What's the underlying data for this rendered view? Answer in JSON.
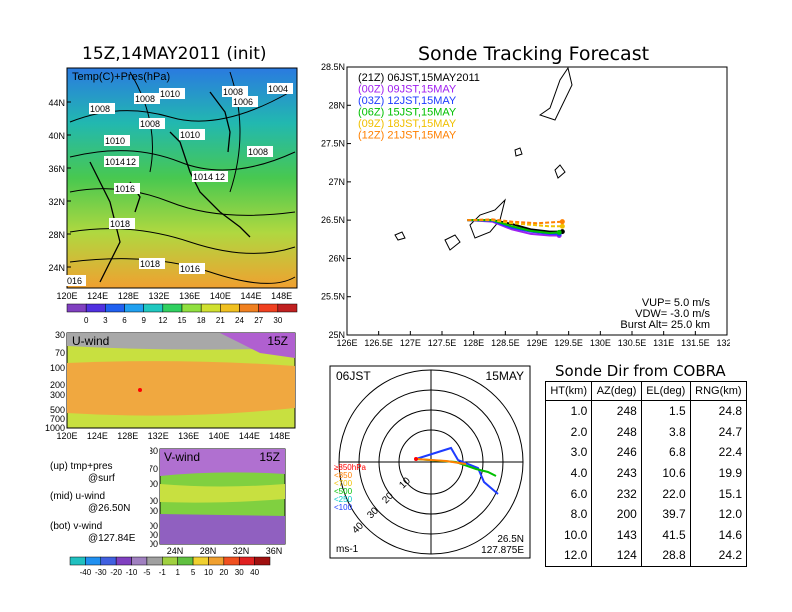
{
  "left_title": "15Z,14MAY2011 (init)",
  "right_title": "Sonde Tracking Forecast",
  "map_panel": {
    "label": "Temp(C)+Pres(hPa)",
    "lat_ticks": [
      "44N",
      "40N",
      "36N",
      "32N",
      "28N",
      "24N"
    ],
    "lon_ticks": [
      "120E",
      "124E",
      "128E",
      "132E",
      "136E",
      "140E",
      "144E",
      "148E"
    ],
    "pressure_labels": [
      "1008",
      "1008",
      "1010",
      "1008",
      "1004",
      "1008",
      "1006",
      "1010",
      "1010",
      "1008",
      "1014",
      "12",
      "1016",
      "1014",
      "12",
      "1018",
      "1018",
      "1016",
      "016"
    ],
    "colorbar_ticks": [
      "0",
      "3",
      "6",
      "9",
      "12",
      "15",
      "18",
      "21",
      "24",
      "27",
      "30"
    ]
  },
  "uwind_panel": {
    "label": "U-wind",
    "time": "15Z",
    "p_ticks": [
      "30",
      "70",
      "100",
      "200",
      "300",
      "500",
      "700",
      "1000"
    ],
    "lon_ticks": [
      "120E",
      "124E",
      "128E",
      "132E",
      "136E",
      "140E",
      "144E",
      "148E"
    ]
  },
  "vwind_panel": {
    "label": "V-wind",
    "time": "15Z",
    "p_ticks": [
      "30",
      "70",
      "100",
      "200",
      "300",
      "500",
      "700",
      "1000"
    ],
    "lat_ticks": [
      "24N",
      "28N",
      "32N",
      "36N"
    ],
    "colorbar_ticks": [
      "-40",
      "-30",
      "-20",
      "-10",
      "-5",
      "-1",
      "1",
      "5",
      "10",
      "20",
      "30",
      "40"
    ]
  },
  "side_legend": {
    "up": "(up) tmp+pres",
    "up2": "@surf",
    "mid": "(mid) u-wind",
    "mid2": "@26.50N",
    "bot": "(bot) v-wind",
    "bot2": "@127.84E"
  },
  "track_panel": {
    "lat_ticks": [
      "28.5N",
      "28N",
      "27.5N",
      "27N",
      "26.5N",
      "26N",
      "25.5N",
      "25N"
    ],
    "lon_ticks": [
      "126E",
      "126.5E",
      "127E",
      "127.5E",
      "128E",
      "128.5E",
      "129E",
      "129.5E",
      "130E",
      "130.5E",
      "131E",
      "131.5E",
      "132E"
    ],
    "legend": [
      {
        "label": "(21Z) 06JST,15MAY2011",
        "color": "#000000"
      },
      {
        "label": "(00Z) 09JST,15MAY",
        "color": "#a020f0"
      },
      {
        "label": "(03Z) 12JST,15MAY",
        "color": "#1e3cff"
      },
      {
        "label": "(06Z) 15JST,15MAY",
        "color": "#00c000"
      },
      {
        "label": "(09Z) 18JST,15MAY",
        "color": "#f0c000"
      },
      {
        "label": "(12Z) 21JST,15MAY",
        "color": "#ff8000"
      }
    ],
    "vup": "VUP=  5.0 m/s",
    "vdw": "VDW= -3.0 m/s",
    "burst": "Burst Alt= 25.0 km"
  },
  "polar_panel": {
    "time": "06JST",
    "date": "15MAY",
    "range_labels": [
      "10",
      "20",
      "30",
      "40"
    ],
    "layer_legend": [
      {
        "label": "≥850hPa",
        "color": "#ff0000"
      },
      {
        "label": "<850",
        "color": "#ff8000"
      },
      {
        "label": "<700",
        "color": "#f0c000"
      },
      {
        "label": "<500",
        "color": "#00c000"
      },
      {
        "label": "<250",
        "color": "#00c8c8"
      },
      {
        "label": "<100",
        "color": "#1e3cff"
      }
    ],
    "unit": "ms-1",
    "lat": "26.5N",
    "lon": "127.875E"
  },
  "cobra_table": {
    "title": "Sonde Dir from COBRA",
    "headers": [
      "HT(km)",
      "AZ(deg)",
      "EL(deg)",
      "RNG(km)"
    ],
    "rows": [
      [
        "1.0",
        "248",
        "1.5",
        "24.8"
      ],
      [
        "2.0",
        "248",
        "3.8",
        "24.7"
      ],
      [
        "3.0",
        "246",
        "6.8",
        "22.4"
      ],
      [
        "4.0",
        "243",
        "10.6",
        "19.9"
      ],
      [
        "6.0",
        "232",
        "22.0",
        "15.1"
      ],
      [
        "8.0",
        "200",
        "39.7",
        "12.0"
      ],
      [
        "10.0",
        "143",
        "41.5",
        "14.6"
      ],
      [
        "12.0",
        "124",
        "28.8",
        "24.2"
      ]
    ]
  },
  "chart_data": [
    {
      "type": "heatmap",
      "title": "Temp(C)+Pres(hPa)",
      "xlabel": "",
      "ylabel": "",
      "xlim": [
        120,
        150
      ],
      "ylim": [
        22,
        47
      ],
      "colorbar": [
        0,
        3,
        6,
        9,
        12,
        15,
        18,
        21,
        24,
        27,
        30
      ]
    },
    {
      "type": "heatmap",
      "title": "U-wind",
      "xlim": [
        120,
        150
      ],
      "ylim": [
        1000,
        30
      ]
    },
    {
      "type": "heatmap",
      "title": "V-wind",
      "xlim": [
        22,
        38
      ],
      "ylim": [
        1000,
        30
      ],
      "colorbar": [
        -40,
        -30,
        -20,
        -10,
        -5,
        -1,
        1,
        5,
        10,
        20,
        30,
        40
      ]
    },
    {
      "type": "line",
      "title": "Sonde Tracking Forecast",
      "xlim": [
        126,
        132
      ],
      "ylim": [
        25,
        28.5
      ],
      "series": [
        {
          "name": "(21Z) 06JST,15MAY2011",
          "color": "#000000",
          "x": [
            127.9,
            128.3,
            128.6,
            128.9,
            129.2,
            129.4
          ],
          "y": [
            26.5,
            26.5,
            26.45,
            26.38,
            26.35,
            26.35
          ]
        },
        {
          "name": "(00Z) 09JST,15MAY",
          "color": "#a020f0",
          "x": [
            127.9,
            128.3,
            128.6,
            128.9,
            129.2,
            129.35
          ],
          "y": [
            26.5,
            26.48,
            26.38,
            26.32,
            26.3,
            26.3
          ]
        },
        {
          "name": "(03Z) 12JST,15MAY",
          "color": "#1e3cff",
          "x": [
            127.9,
            128.3,
            128.6,
            128.9,
            129.2,
            129.35
          ],
          "y": [
            26.5,
            26.49,
            26.4,
            26.35,
            26.32,
            26.32
          ]
        },
        {
          "name": "(06Z) 15JST,15MAY",
          "color": "#00c000",
          "x": [
            127.9,
            128.3,
            128.6,
            128.9,
            129.2,
            129.35
          ],
          "y": [
            26.5,
            26.5,
            26.42,
            26.36,
            26.33,
            26.34
          ]
        },
        {
          "name": "(09Z) 18JST,15MAY",
          "color": "#f0c000",
          "x": [
            127.9,
            128.3,
            128.6,
            128.9,
            129.2,
            129.4
          ],
          "y": [
            26.5,
            26.5,
            26.46,
            26.44,
            26.42,
            26.42
          ]
        },
        {
          "name": "(12Z) 21JST,15MAY",
          "color": "#ff8000",
          "x": [
            127.9,
            128.3,
            128.6,
            129.0,
            129.4
          ],
          "y": [
            26.5,
            26.51,
            26.48,
            26.46,
            26.48
          ]
        }
      ]
    },
    {
      "type": "table",
      "title": "Sonde Dir from COBRA",
      "columns": [
        "HT(km)",
        "AZ(deg)",
        "EL(deg)",
        "RNG(km)"
      ],
      "rows": [
        [
          1.0,
          248,
          1.5,
          24.8
        ],
        [
          2.0,
          248,
          3.8,
          24.7
        ],
        [
          3.0,
          246,
          6.8,
          22.4
        ],
        [
          4.0,
          243,
          10.6,
          19.9
        ],
        [
          6.0,
          232,
          22.0,
          15.1
        ],
        [
          8.0,
          200,
          39.7,
          12.0
        ],
        [
          10.0,
          143,
          41.5,
          14.6
        ],
        [
          12.0,
          124,
          28.8,
          24.2
        ]
      ]
    }
  ]
}
